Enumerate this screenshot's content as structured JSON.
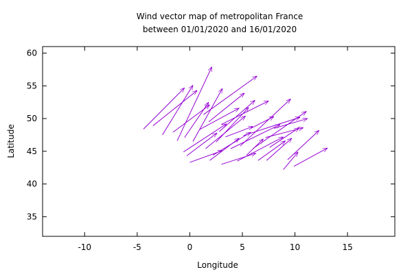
{
  "chart_data": {
    "type": "vector",
    "title": [
      "Wind vector map of metropolitan France",
      "between 01/01/2020 and 16/01/2020"
    ],
    "xlabel": "Longitude",
    "ylabel": "Latitude",
    "xlim": [
      -14,
      19.5
    ],
    "ylim": [
      32,
      61
    ],
    "xticks": [
      -10,
      -5,
      0,
      5,
      10,
      15
    ],
    "yticks": [
      35,
      40,
      45,
      50,
      55,
      60
    ],
    "grid": false,
    "vector_color": "#9400d3",
    "vectors": [
      {
        "x": -4.4,
        "y": 48.4,
        "x2": -0.5,
        "y2": 54.7
      },
      {
        "x": -3.5,
        "y": 48.9,
        "x2": 0.7,
        "y2": 54.3
      },
      {
        "x": -2.6,
        "y": 47.5,
        "x2": 0.3,
        "y2": 55.1
      },
      {
        "x": -1.6,
        "y": 47.9,
        "x2": 1.9,
        "y2": 52.1
      },
      {
        "x": -1.2,
        "y": 46.6,
        "x2": 2.1,
        "y2": 57.9
      },
      {
        "x": -0.5,
        "y": 47.1,
        "x2": 1.8,
        "y2": 52.5
      },
      {
        "x": -0.6,
        "y": 44.9,
        "x2": 3.5,
        "y2": 49.2
      },
      {
        "x": -0.3,
        "y": 44.3,
        "x2": 2.6,
        "y2": 47.8
      },
      {
        "x": 0.0,
        "y": 43.3,
        "x2": 3.1,
        "y2": 45.1
      },
      {
        "x": 0.3,
        "y": 46.5,
        "x2": 3.1,
        "y2": 54.6
      },
      {
        "x": 0.9,
        "y": 48.3,
        "x2": 4.7,
        "y2": 51.6
      },
      {
        "x": 1.5,
        "y": 45.4,
        "x2": 5.3,
        "y2": 50.4
      },
      {
        "x": 1.8,
        "y": 49.5,
        "x2": 5.2,
        "y2": 53.9
      },
      {
        "x": 1.3,
        "y": 50.6,
        "x2": 6.4,
        "y2": 56.5
      },
      {
        "x": 1.9,
        "y": 43.6,
        "x2": 4.7,
        "y2": 47.0
      },
      {
        "x": 2.2,
        "y": 44.4,
        "x2": 5.8,
        "y2": 47.9
      },
      {
        "x": 2.5,
        "y": 46.4,
        "x2": 5.6,
        "y2": 51.7
      },
      {
        "x": 2.8,
        "y": 48.0,
        "x2": 6.2,
        "y2": 52.8
      },
      {
        "x": 3.0,
        "y": 49.1,
        "x2": 7.5,
        "y2": 52.7
      },
      {
        "x": 3.4,
        "y": 47.2,
        "x2": 6.0,
        "y2": 48.8
      },
      {
        "x": 3.0,
        "y": 43.0,
        "x2": 6.3,
        "y2": 44.7
      },
      {
        "x": 3.9,
        "y": 45.4,
        "x2": 8.6,
        "y2": 49.1
      },
      {
        "x": 4.5,
        "y": 43.5,
        "x2": 8.9,
        "y2": 47.2
      },
      {
        "x": 4.8,
        "y": 45.8,
        "x2": 9.6,
        "y2": 53.0
      },
      {
        "x": 5.1,
        "y": 47.4,
        "x2": 10.5,
        "y2": 50.2
      },
      {
        "x": 5.4,
        "y": 44.4,
        "x2": 7.0,
        "y2": 46.9
      },
      {
        "x": 5.8,
        "y": 48.5,
        "x2": 8.0,
        "y2": 50.3
      },
      {
        "x": 6.0,
        "y": 45.4,
        "x2": 11.1,
        "y2": 51.1
      },
      {
        "x": 6.5,
        "y": 43.6,
        "x2": 9.1,
        "y2": 46.6
      },
      {
        "x": 7.2,
        "y": 47.1,
        "x2": 10.8,
        "y2": 48.6
      },
      {
        "x": 7.6,
        "y": 45.6,
        "x2": 10.4,
        "y2": 48.6
      },
      {
        "x": 7.3,
        "y": 43.6,
        "x2": 9.7,
        "y2": 47.0
      },
      {
        "x": 8.0,
        "y": 48.5,
        "x2": 11.2,
        "y2": 50.0
      },
      {
        "x": 8.9,
        "y": 42.2,
        "x2": 10.3,
        "y2": 44.9
      },
      {
        "x": 9.3,
        "y": 43.7,
        "x2": 12.3,
        "y2": 48.2
      },
      {
        "x": 9.9,
        "y": 42.7,
        "x2": 13.1,
        "y2": 45.5
      }
    ]
  }
}
